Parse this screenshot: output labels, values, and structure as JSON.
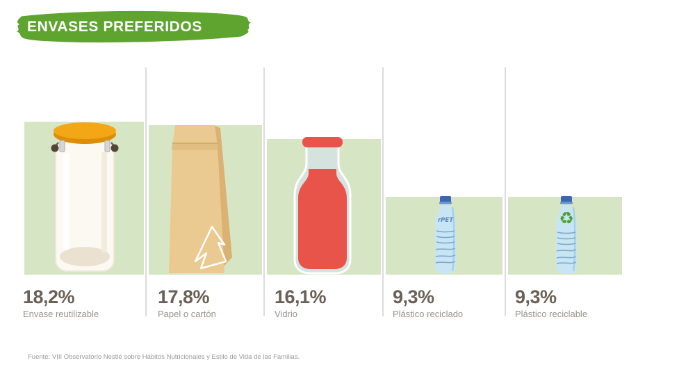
{
  "title": "ENVASES PREFERIDOS",
  "source_note": "Fuente: VIII Observatorio Nestlé sobre Hábitos Nutricionales y Estilo de Vida de las Familias.",
  "bottle_label": "rPET",
  "glyphs": {
    "recycle": "♻"
  },
  "colors": {
    "banner": "#5fa42f",
    "banner_text": "#ffffff",
    "bar": "#d6e6c5",
    "divider": "#dcdcdc",
    "percent_text": "#6a6057",
    "category_text": "#9b9289",
    "source_text": "#9a9a9a"
  },
  "chart_data": {
    "type": "bar",
    "title": "ENVASES PREFERIDOS",
    "unit": "%",
    "categories": [
      "Envase reutilizable",
      "Papel o cartón",
      "Vidrio",
      "Plástico reciclado",
      "Plástico reciclable"
    ],
    "values": [
      18.2,
      17.8,
      16.1,
      9.3,
      9.3
    ],
    "value_labels": [
      "18,2%",
      "17,8%",
      "16,1%",
      "9,3%",
      "9,3%"
    ],
    "bar_color": "#d6e6c5",
    "icons": [
      "reusable-jar-icon",
      "paper-bag-icon",
      "glass-bottle-icon",
      "recycled-plastic-bottle-icon",
      "recyclable-plastic-bottle-icon"
    ],
    "ylim": [
      0,
      20
    ],
    "grid": false,
    "legend_position": "none",
    "orientation": "vertical",
    "value_label_position": "below-bar"
  }
}
